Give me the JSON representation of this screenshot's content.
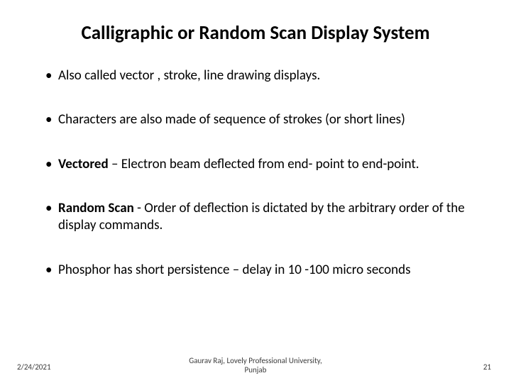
{
  "title": "Calligraphic or Random  Scan Display System",
  "bullets": [
    {
      "pre": "",
      "bold": "",
      "post": "Also called vector , stroke, line drawing displays."
    },
    {
      "pre": "",
      "bold": "",
      "post": "Characters are also made of sequence of strokes (or short lines)"
    },
    {
      "pre": "",
      "bold": "Vectored ",
      "post": "– Electron beam deflected from end- point to end-point."
    },
    {
      "pre": "",
      "bold": "Random Scan ",
      "post": "- Order of deflection is dictated by the arbitrary order of the display commands."
    },
    {
      "pre": "",
      "bold": "",
      "post": "Phosphor has short persistence – delay in 10 -100 micro seconds"
    }
  ],
  "footer": {
    "date": "2/24/2021",
    "center_line1": "Gaurav Raj, Lovely Professional University,",
    "center_line2": "Punjab",
    "page": "21"
  },
  "style": {
    "background_color": "#ffffff",
    "text_color": "#000000",
    "title_fontsize": 27,
    "body_fontsize": 19,
    "footer_fontsize": 11
  }
}
